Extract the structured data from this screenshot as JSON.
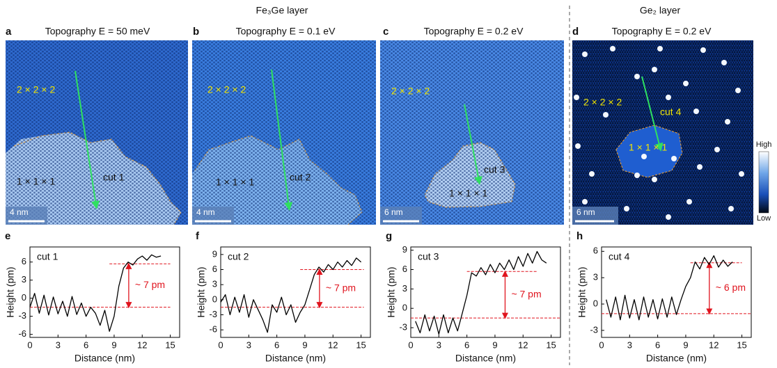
{
  "figure": {
    "groups": [
      "Fe₃Ge layer",
      "Ge₂ layer"
    ],
    "panels": [
      {
        "letter": "a",
        "title": "Topography E = 50 meV",
        "labels": [
          "2 × 2 × 2",
          "1 × 1 × 1",
          "cut 1"
        ],
        "scale": "4 nm"
      },
      {
        "letter": "b",
        "title": "Topography E = 0.1 eV",
        "labels": [
          "2 × 2 × 2",
          "1 × 1 × 1",
          "cut 2"
        ],
        "scale": "4 nm"
      },
      {
        "letter": "c",
        "title": "Topography E = 0.2 eV",
        "labels": [
          "2 × 2 × 2",
          "1 × 1 × 1",
          "cut 3"
        ],
        "scale": "6 nm"
      },
      {
        "letter": "d",
        "title": "Topography E = 0.2 eV",
        "labels": [
          "2 × 2 × 2",
          "1 × 1 × 1",
          "cut 4"
        ],
        "scale": "6 nm"
      }
    ],
    "colorbar": {
      "high": "High",
      "low": "Low"
    }
  },
  "chart_data": [
    {
      "type": "line",
      "panel": "e",
      "label": "cut 1",
      "xlabel": "Distance (nm)",
      "ylabel": "Height (pm)",
      "annotation": "~ 7 pm",
      "color": "#000000",
      "line_color": "#e0141e",
      "x": [
        0,
        0.5,
        1,
        1.5,
        2,
        2.5,
        3,
        3.5,
        4,
        4.5,
        5,
        5.5,
        6,
        6.5,
        7,
        7.5,
        8,
        8.5,
        9,
        9.5,
        10,
        10.5,
        11,
        11.5,
        12,
        12.5,
        13,
        13.5,
        14
      ],
      "values": [
        -1.5,
        0.8,
        -2.5,
        0.5,
        -2.8,
        0.2,
        -2.6,
        -0.5,
        -3,
        0.3,
        -2.7,
        -0.8,
        -3,
        -1.5,
        -2.5,
        -4.5,
        -2,
        -5.5,
        -3,
        2,
        5,
        6,
        5.5,
        6.5,
        7,
        6.3,
        7.2,
        6.8,
        7
      ],
      "hlines": [
        {
          "y": 5.7,
          "x": [
            8.5,
            15
          ]
        },
        {
          "y": -1.5,
          "x": [
            0,
            15
          ]
        }
      ],
      "xlim": [
        0,
        16
      ],
      "xticks": [
        0,
        3,
        6,
        9,
        12,
        15
      ],
      "ylim": [
        -6.5,
        8.5
      ],
      "yticks": [
        -6,
        -3,
        0,
        3,
        6
      ]
    },
    {
      "type": "line",
      "panel": "f",
      "label": "cut 2",
      "xlabel": "Distance (nm)",
      "ylabel": "Height (pm)",
      "annotation": "~ 7 pm",
      "color": "#000000",
      "line_color": "#e0141e",
      "x": [
        0,
        0.5,
        1,
        1.5,
        2,
        2.5,
        3,
        3.5,
        4,
        4.5,
        5,
        5.5,
        6,
        6.5,
        7,
        7.5,
        8,
        8.5,
        9,
        9.5,
        10,
        10.5,
        11,
        11.5,
        12,
        12.5,
        13,
        13.5,
        14,
        14.5,
        15
      ],
      "values": [
        -0.5,
        1,
        -3,
        0.5,
        -2.5,
        1,
        -3.5,
        0,
        -2,
        -4,
        -6.5,
        -1,
        -2.5,
        0.5,
        -3,
        -1,
        -4.5,
        -2.5,
        -1,
        2,
        5,
        6.5,
        5.5,
        7,
        6,
        7.5,
        6.5,
        7.8,
        6.8,
        8.3,
        7.5
      ],
      "hlines": [
        {
          "y": 6,
          "x": [
            8.5,
            15.3
          ]
        },
        {
          "y": -1.5,
          "x": [
            0,
            15.3
          ]
        }
      ],
      "xlim": [
        0,
        16
      ],
      "xticks": [
        0,
        3,
        6,
        9,
        12,
        15
      ],
      "ylim": [
        -7.5,
        10.5
      ],
      "yticks": [
        -6,
        -3,
        0,
        3,
        6,
        9
      ]
    },
    {
      "type": "line",
      "panel": "g",
      "label": "cut 3",
      "xlabel": "Distance (nm)",
      "ylabel": "Height (pm)",
      "annotation": "~ 7 pm",
      "color": "#000000",
      "line_color": "#e0141e",
      "x": [
        0.5,
        1,
        1.5,
        2,
        2.5,
        3,
        3.5,
        4,
        4.5,
        5,
        5.5,
        6,
        6.5,
        7,
        7.5,
        8,
        8.5,
        9,
        9.5,
        10,
        10.5,
        11,
        11.5,
        12,
        12.5,
        13,
        13.5,
        14,
        14.5
      ],
      "values": [
        -2,
        -3.8,
        -1,
        -3.5,
        -1.2,
        -4,
        -1,
        -3.8,
        -1.5,
        -3.5,
        -0.8,
        2,
        5.5,
        5,
        6.3,
        5.2,
        6.8,
        5.5,
        7,
        6,
        7.5,
        6,
        8,
        6.5,
        8.5,
        7,
        8.8,
        7.5,
        7
      ],
      "hlines": [
        {
          "y": 5.7,
          "x": [
            6,
            13.5
          ]
        },
        {
          "y": -1.5,
          "x": [
            0,
            16
          ]
        }
      ],
      "xlim": [
        0,
        16
      ],
      "xticks": [
        0,
        3,
        6,
        9,
        12,
        15
      ],
      "ylim": [
        -4.5,
        9.5
      ],
      "yticks": [
        -3,
        0,
        3,
        6,
        9
      ]
    },
    {
      "type": "line",
      "panel": "h",
      "label": "cut 4",
      "xlabel": "Distance (nm)",
      "ylabel": "Height (pm)",
      "annotation": "~ 6 pm",
      "color": "#000000",
      "line_color": "#e0141e",
      "x": [
        0.5,
        1,
        1.5,
        2,
        2.5,
        3,
        3.5,
        4,
        4.5,
        5,
        5.5,
        6,
        6.5,
        7,
        7.5,
        8,
        8.5,
        9,
        9.5,
        10,
        10.5,
        11,
        11.5,
        12,
        12.5,
        13,
        13.5,
        14
      ],
      "values": [
        0.5,
        -1.5,
        0.8,
        -1.8,
        1,
        -1.6,
        0.5,
        -1.8,
        0.8,
        -1.5,
        0.5,
        -1.7,
        0.6,
        -1.5,
        0.8,
        -1.2,
        0.5,
        2,
        3,
        4.8,
        4,
        5.3,
        4.5,
        5.5,
        4.2,
        5,
        4.3,
        4.8
      ],
      "hlines": [
        {
          "y": 4.7,
          "x": [
            9.5,
            15
          ]
        },
        {
          "y": -1.1,
          "x": [
            0,
            16
          ]
        }
      ],
      "xlim": [
        0,
        16
      ],
      "xticks": [
        0,
        3,
        6,
        9,
        12,
        15
      ],
      "ylim": [
        -3.8,
        6.5
      ],
      "yticks": [
        -3,
        0,
        3,
        6
      ]
    }
  ]
}
